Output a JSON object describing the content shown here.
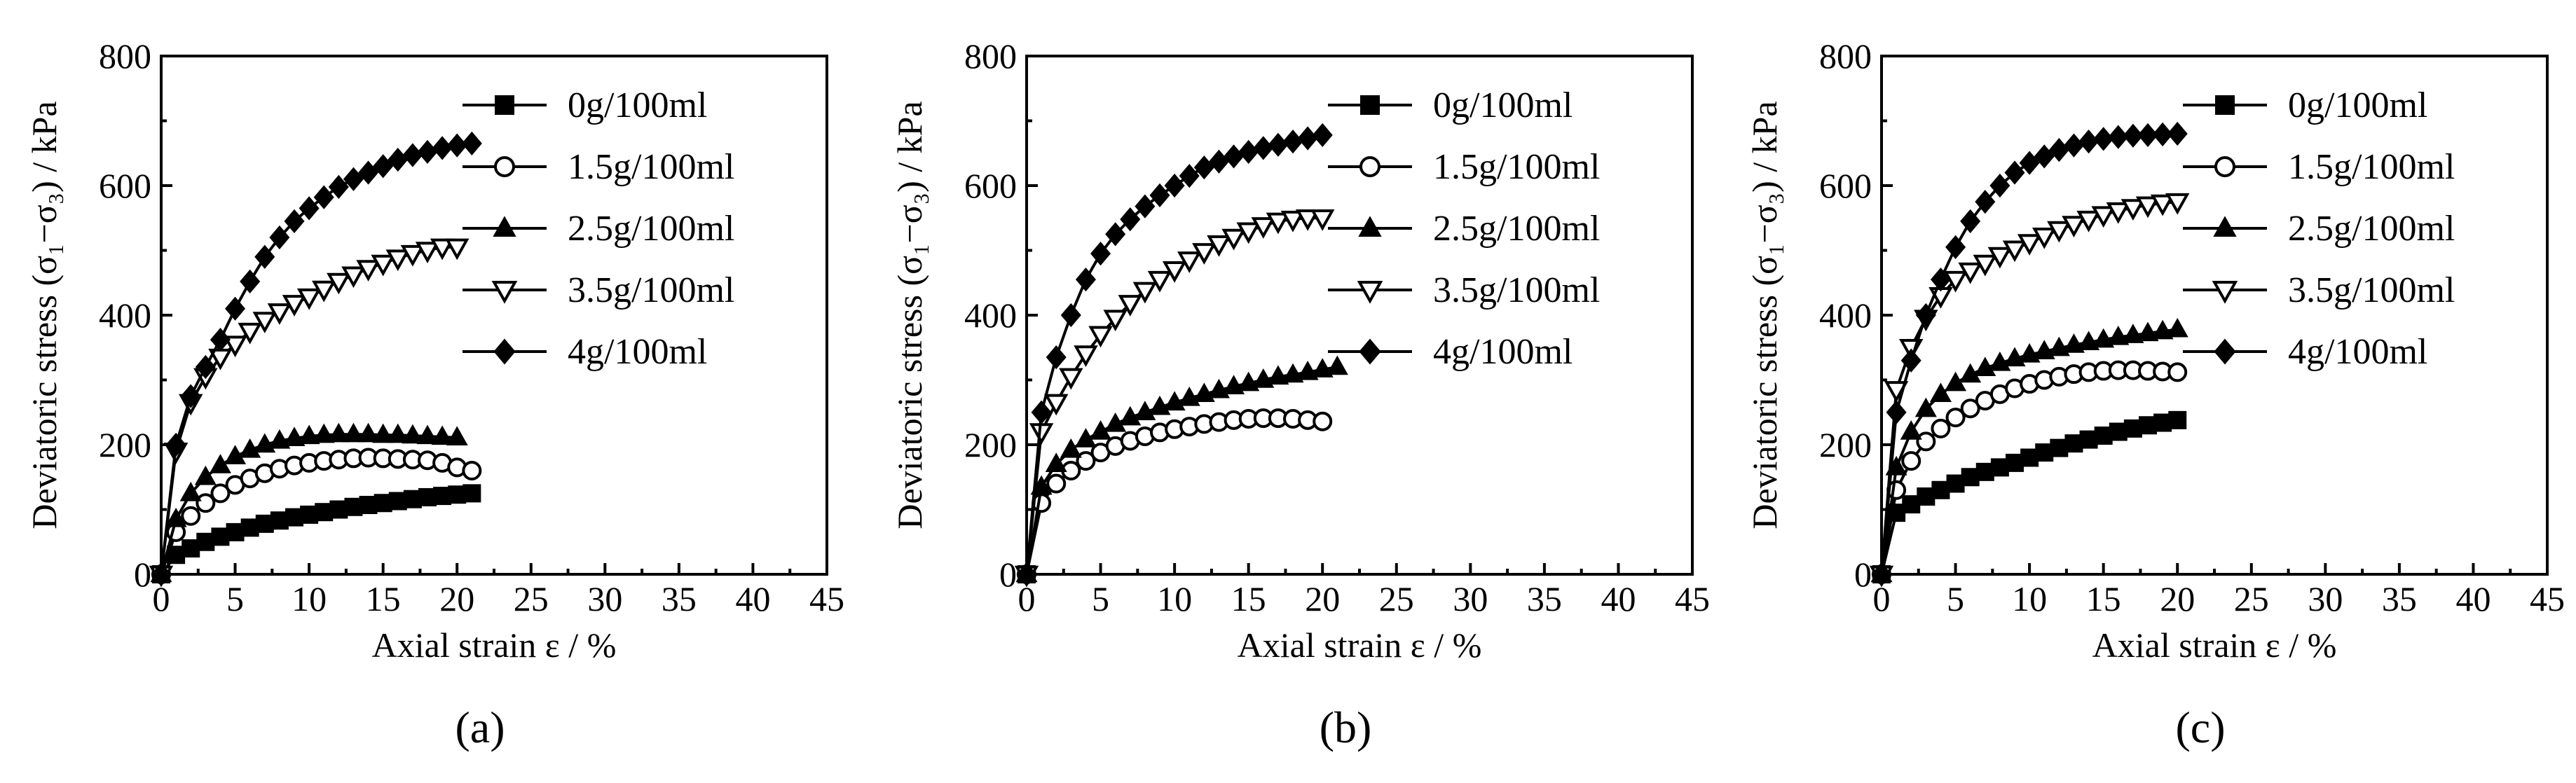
{
  "chart_data": [
    {
      "type": "line",
      "panel": "a",
      "xlabel": "Axial strain  ε / %",
      "ylabel": "Deviatoric stress (σ₁−σ₃) / kPa",
      "xlim": [
        0,
        45
      ],
      "ylim": [
        0,
        800
      ],
      "xticks": [
        0,
        5,
        10,
        15,
        20,
        25,
        30,
        35,
        40,
        45
      ],
      "yticks": [
        0,
        200,
        400,
        600,
        800
      ],
      "legend_position": "top-right",
      "series": [
        {
          "name": "0g/100ml",
          "marker": "square",
          "x": [
            0,
            1,
            2,
            3,
            4,
            5,
            6,
            7,
            8,
            9,
            10,
            11,
            12,
            13,
            14,
            15,
            16,
            17,
            18,
            19,
            20,
            21
          ],
          "y": [
            0,
            30,
            40,
            50,
            58,
            65,
            72,
            78,
            83,
            88,
            92,
            96,
            100,
            104,
            107,
            110,
            113,
            116,
            119,
            121,
            123,
            125
          ]
        },
        {
          "name": "1.5g/100ml",
          "marker": "circle-open",
          "x": [
            0,
            1,
            2,
            3,
            4,
            5,
            6,
            7,
            8,
            9,
            10,
            11,
            12,
            13,
            14,
            15,
            16,
            17,
            18,
            19,
            20,
            21
          ],
          "y": [
            0,
            65,
            90,
            110,
            125,
            138,
            148,
            156,
            163,
            168,
            172,
            175,
            177,
            179,
            180,
            179,
            178,
            177,
            176,
            172,
            165,
            160
          ]
        },
        {
          "name": "2.5g/100ml",
          "marker": "triangle",
          "x": [
            0,
            1,
            2,
            3,
            4,
            5,
            6,
            7,
            8,
            9,
            10,
            11,
            12,
            13,
            14,
            15,
            16,
            17,
            18,
            19,
            20
          ],
          "y": [
            0,
            85,
            125,
            150,
            168,
            182,
            192,
            200,
            206,
            210,
            213,
            215,
            216,
            216,
            216,
            215,
            215,
            214,
            213,
            212,
            211
          ]
        },
        {
          "name": "3.5g/100ml",
          "marker": "triangle-down-open",
          "x": [
            0,
            1,
            2,
            3,
            4,
            5,
            6,
            7,
            8,
            9,
            10,
            11,
            12,
            13,
            14,
            15,
            16,
            17,
            18,
            19,
            20
          ],
          "y": [
            0,
            190,
            265,
            305,
            335,
            355,
            375,
            392,
            405,
            418,
            428,
            440,
            452,
            462,
            472,
            480,
            488,
            495,
            500,
            505,
            505
          ]
        },
        {
          "name": "4g/100ml",
          "marker": "diamond",
          "x": [
            0,
            1,
            2,
            3,
            4,
            5,
            6,
            7,
            8,
            9,
            10,
            11,
            12,
            13,
            14,
            15,
            16,
            17,
            18,
            19,
            20,
            21
          ],
          "y": [
            0,
            200,
            275,
            320,
            362,
            410,
            452,
            490,
            520,
            545,
            565,
            582,
            598,
            610,
            620,
            630,
            640,
            647,
            652,
            658,
            662,
            665
          ]
        }
      ]
    },
    {
      "type": "line",
      "panel": "b",
      "xlabel": "Axial strain  ε / %",
      "ylabel": "Deviatoric stress (σ₁−σ₃) / kPa",
      "xlim": [
        0,
        45
      ],
      "ylim": [
        0,
        800
      ],
      "xticks": [
        0,
        5,
        10,
        15,
        20,
        25,
        30,
        35,
        40,
        45
      ],
      "yticks": [
        0,
        200,
        400,
        600,
        800
      ],
      "legend_position": "top-right",
      "series": [
        {
          "name": "0g/100ml",
          "marker": "square",
          "x": [
            0
          ],
          "y": [
            0
          ]
        },
        {
          "name": "1.5g/100ml",
          "marker": "circle-open",
          "x": [
            0,
            1,
            2,
            3,
            4,
            5,
            6,
            7,
            8,
            9,
            10,
            11,
            12,
            13,
            14,
            15,
            16,
            17,
            18,
            19,
            20
          ],
          "y": [
            0,
            110,
            140,
            160,
            175,
            188,
            198,
            206,
            213,
            219,
            224,
            228,
            232,
            235,
            238,
            240,
            241,
            241,
            240,
            238,
            236
          ]
        },
        {
          "name": "2.5g/100ml",
          "marker": "triangle",
          "x": [
            0,
            1,
            2,
            3,
            4,
            5,
            6,
            7,
            8,
            9,
            10,
            11,
            12,
            13,
            14,
            15,
            16,
            17,
            18,
            19,
            20,
            21
          ],
          "y": [
            0,
            135,
            170,
            192,
            208,
            220,
            232,
            242,
            250,
            258,
            265,
            272,
            278,
            284,
            290,
            295,
            300,
            305,
            308,
            312,
            316,
            320
          ]
        },
        {
          "name": "3.5g/100ml",
          "marker": "triangle-down-open",
          "x": [
            0,
            1,
            2,
            3,
            4,
            5,
            6,
            7,
            8,
            9,
            10,
            11,
            12,
            13,
            14,
            15,
            16,
            17,
            18,
            19,
            20
          ],
          "y": [
            0,
            220,
            265,
            305,
            340,
            370,
            395,
            418,
            438,
            455,
            470,
            485,
            498,
            510,
            520,
            530,
            538,
            545,
            548,
            550,
            550
          ]
        },
        {
          "name": "4g/100ml",
          "marker": "diamond",
          "x": [
            0,
            1,
            2,
            3,
            4,
            5,
            6,
            7,
            8,
            9,
            10,
            11,
            12,
            13,
            14,
            15,
            16,
            17,
            18,
            19,
            20
          ],
          "y": [
            0,
            250,
            335,
            400,
            455,
            495,
            525,
            548,
            568,
            585,
            600,
            615,
            628,
            637,
            645,
            652,
            658,
            663,
            668,
            673,
            678
          ]
        }
      ]
    },
    {
      "type": "line",
      "panel": "c",
      "xlabel": "Axial strain  ε / %",
      "ylabel": "Deviatoric stress (σ₁−σ₃) / kPa",
      "xlim": [
        0,
        45
      ],
      "ylim": [
        0,
        800
      ],
      "xticks": [
        0,
        5,
        10,
        15,
        20,
        25,
        30,
        35,
        40,
        45
      ],
      "yticks": [
        0,
        200,
        400,
        600,
        800
      ],
      "legend_position": "top-right",
      "series": [
        {
          "name": "0g/100ml",
          "marker": "square",
          "x": [
            0,
            1,
            2,
            3,
            4,
            5,
            6,
            7,
            8,
            9,
            10,
            11,
            12,
            13,
            14,
            15,
            16,
            17,
            18,
            19,
            20
          ],
          "y": [
            0,
            95,
            108,
            120,
            130,
            140,
            150,
            158,
            165,
            172,
            180,
            188,
            195,
            202,
            208,
            214,
            220,
            225,
            230,
            234,
            238
          ]
        },
        {
          "name": "1.5g/100ml",
          "marker": "circle-open",
          "x": [
            0,
            1,
            2,
            3,
            4,
            5,
            6,
            7,
            8,
            9,
            10,
            11,
            12,
            13,
            14,
            15,
            16,
            17,
            18,
            19,
            20
          ],
          "y": [
            0,
            130,
            175,
            205,
            225,
            242,
            256,
            268,
            278,
            287,
            294,
            300,
            305,
            309,
            312,
            314,
            315,
            315,
            314,
            313,
            312
          ]
        },
        {
          "name": "2.5g/100ml",
          "marker": "triangle",
          "x": [
            0,
            1,
            2,
            3,
            4,
            5,
            6,
            7,
            8,
            9,
            10,
            11,
            12,
            13,
            14,
            15,
            16,
            17,
            18,
            19,
            20
          ],
          "y": [
            0,
            165,
            220,
            255,
            278,
            295,
            308,
            318,
            326,
            333,
            339,
            344,
            349,
            354,
            358,
            362,
            366,
            369,
            372,
            375,
            378
          ]
        },
        {
          "name": "3.5g/100ml",
          "marker": "triangle-down-open",
          "x": [
            0,
            1,
            2,
            3,
            4,
            5,
            6,
            7,
            8,
            9,
            10,
            11,
            12,
            13,
            14,
            15,
            16,
            17,
            18,
            19,
            20
          ],
          "y": [
            0,
            285,
            350,
            395,
            430,
            455,
            468,
            480,
            492,
            502,
            512,
            522,
            532,
            540,
            548,
            555,
            561,
            566,
            570,
            573,
            575
          ]
        },
        {
          "name": "4g/100ml",
          "marker": "diamond",
          "x": [
            0,
            1,
            2,
            3,
            4,
            5,
            6,
            7,
            8,
            9,
            10,
            11,
            12,
            13,
            14,
            15,
            16,
            17,
            18,
            19,
            20
          ],
          "y": [
            0,
            250,
            330,
            400,
            455,
            505,
            545,
            575,
            600,
            620,
            635,
            645,
            655,
            662,
            668,
            672,
            675,
            677,
            678,
            679,
            680
          ]
        }
      ]
    }
  ]
}
